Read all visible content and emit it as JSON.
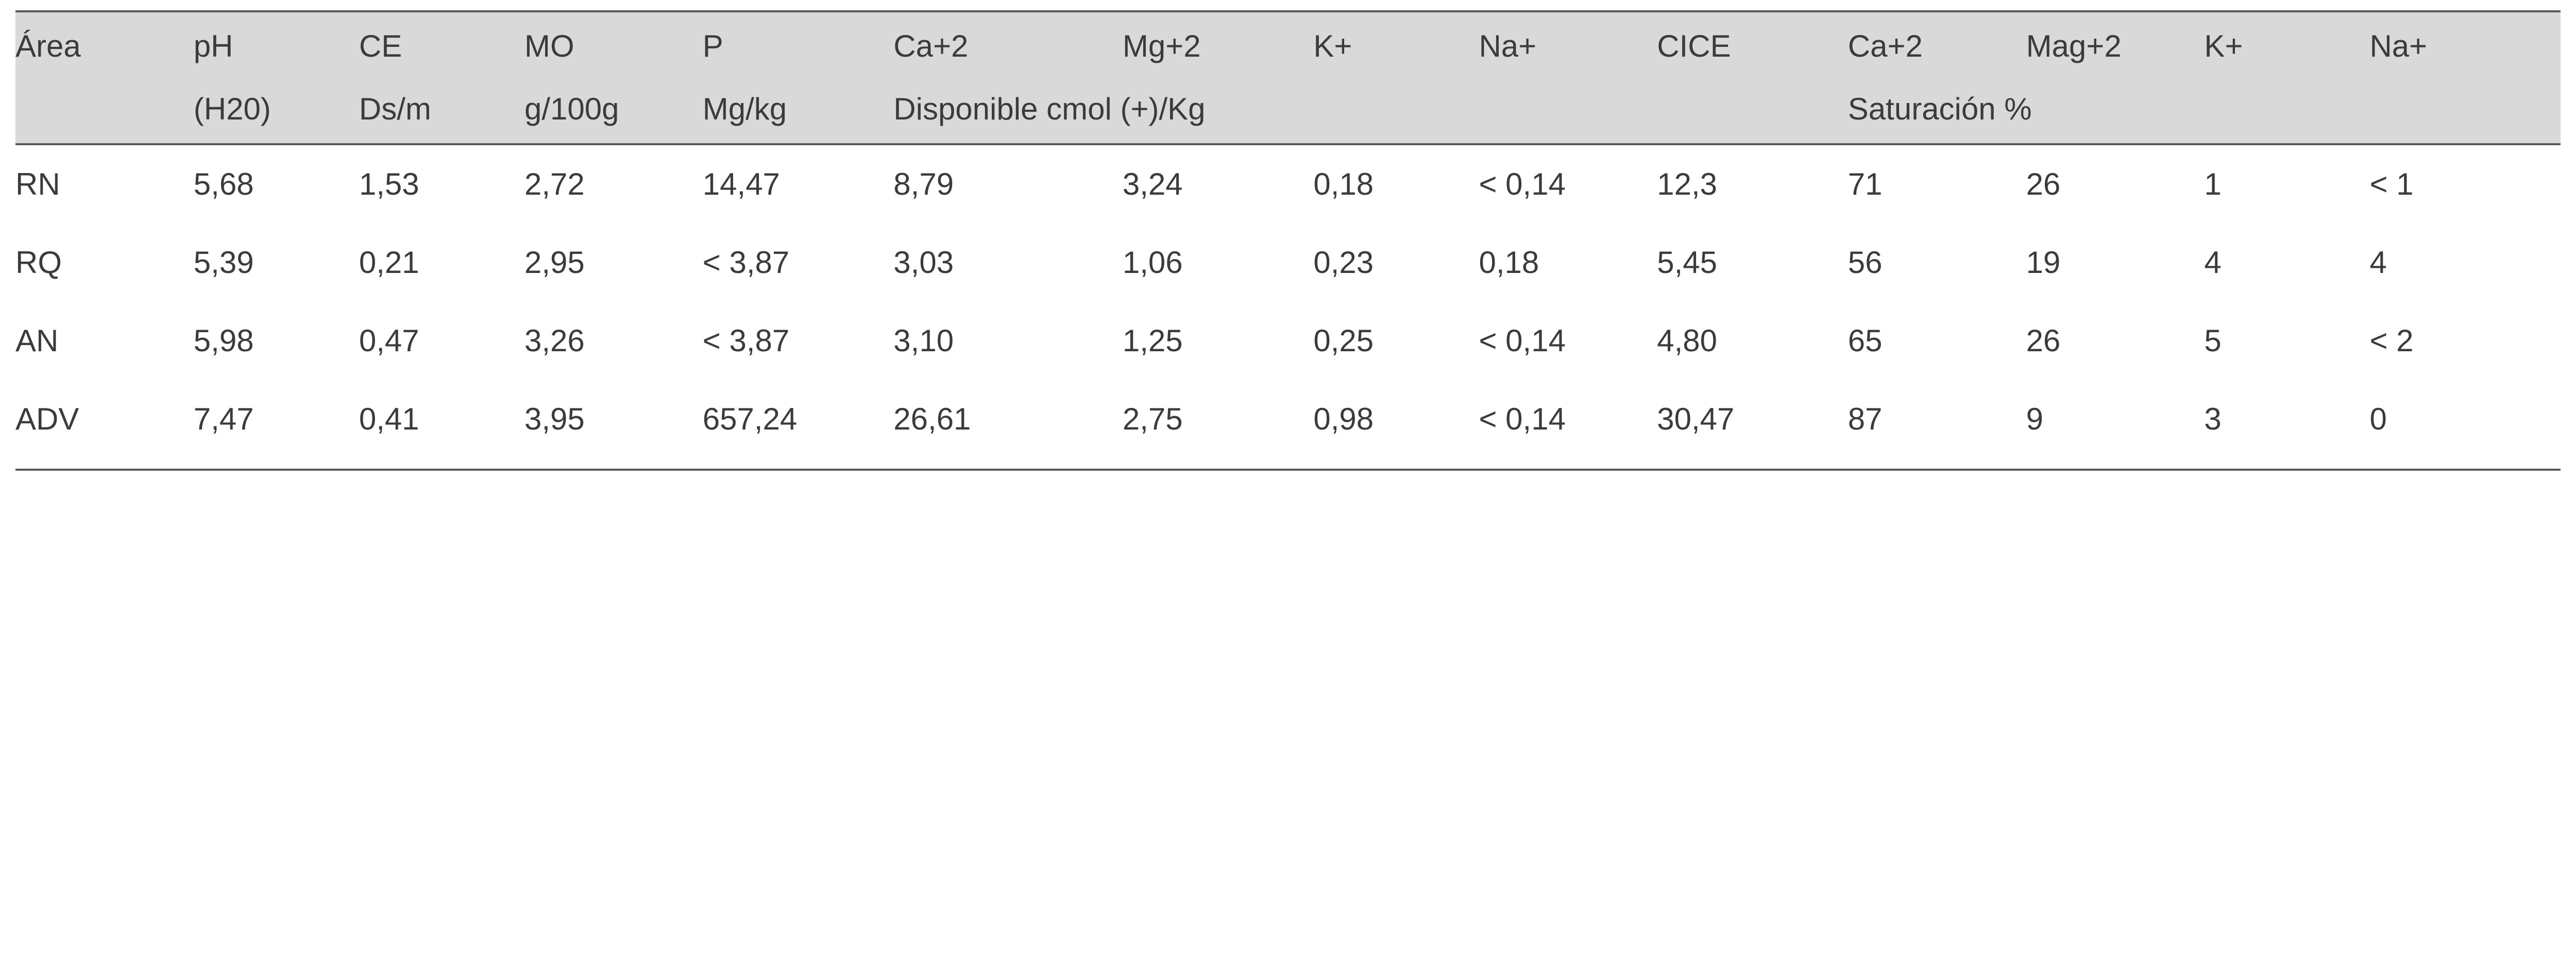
{
  "table": {
    "background_color": "#ffffff",
    "header_bg": "#d9d9d9",
    "text_color": "#3b3b3b",
    "rule_color": "#5a5a5a",
    "font_family": "Arial",
    "font_size_pt": 45,
    "columns": [
      {
        "key": "area",
        "h1": "Área",
        "h2": "",
        "width_pct": 7.0
      },
      {
        "key": "ph",
        "h1": "pH",
        "h2": "(H20)",
        "width_pct": 6.5
      },
      {
        "key": "ce",
        "h1": "CE",
        "h2": "Ds/m",
        "width_pct": 6.5
      },
      {
        "key": "mo",
        "h1": "MO",
        "h2": "g/100g",
        "width_pct": 7.0
      },
      {
        "key": "p",
        "h1": "P",
        "h2": "Mg/kg",
        "width_pct": 7.5
      },
      {
        "key": "ca1",
        "h1": "Ca+2",
        "h2": "Disponible cmol (+)/Kg",
        "width_pct": 9.0
      },
      {
        "key": "mg1",
        "h1": "Mg+2",
        "h2": "",
        "width_pct": 7.5
      },
      {
        "key": "k1",
        "h1": "K+",
        "h2": "",
        "width_pct": 6.5
      },
      {
        "key": "na1",
        "h1": "Na+",
        "h2": "",
        "width_pct": 7.0
      },
      {
        "key": "cice",
        "h1": "CICE",
        "h2": "",
        "width_pct": 7.5
      },
      {
        "key": "ca2",
        "h1": "Ca+2",
        "h2": "Saturación %",
        "width_pct": 7.0
      },
      {
        "key": "mg2",
        "h1": "Mag+2",
        "h2": "",
        "width_pct": 7.0
      },
      {
        "key": "k2",
        "h1": "K+",
        "h2": "",
        "width_pct": 6.5
      },
      {
        "key": "na2",
        "h1": "Na+",
        "h2": "",
        "width_pct": 7.5
      }
    ],
    "header_row2_spans": [
      {
        "start": 0,
        "span": 1,
        "text": ""
      },
      {
        "start": 1,
        "span": 1,
        "text": "(H20)"
      },
      {
        "start": 2,
        "span": 1,
        "text": "Ds/m"
      },
      {
        "start": 3,
        "span": 1,
        "text": "g/100g"
      },
      {
        "start": 4,
        "span": 1,
        "text": "Mg/kg"
      },
      {
        "start": 5,
        "span": 5,
        "text": "Disponible cmol (+)/Kg"
      },
      {
        "start": 10,
        "span": 4,
        "text": "Saturación %"
      }
    ],
    "rows": [
      {
        "area": "RN",
        "ph": "5,68",
        "ce": "1,53",
        "mo": "2,72",
        "p": "14,47",
        "ca1": "8,79",
        "mg1": "3,24",
        "k1": "0,18",
        "na1": "< 0,14",
        "cice": "12,3",
        "ca2": "71",
        "mg2": "26",
        "k2": "1",
        "na2": "< 1"
      },
      {
        "area": "RQ",
        "ph": "5,39",
        "ce": "0,21",
        "mo": "2,95",
        "p": "< 3,87",
        "ca1": "3,03",
        "mg1": "1,06",
        "k1": "0,23",
        "na1": "0,18",
        "cice": "5,45",
        "ca2": "56",
        "mg2": "19",
        "k2": "4",
        "na2": "4"
      },
      {
        "area": "AN",
        "ph": "5,98",
        "ce": "0,47",
        "mo": "3,26",
        "p": "< 3,87",
        "ca1": "3,10",
        "mg1": "1,25",
        "k1": "0,25",
        "na1": "< 0,14",
        "cice": "4,80",
        "ca2": "65",
        "mg2": "26",
        "k2": "5",
        "na2": "< 2"
      },
      {
        "area": "ADV",
        "ph": "7,47",
        "ce": "0,41",
        "mo": "3,95",
        "p": "657,24",
        "ca1": "26,61",
        "mg1": "2,75",
        "k1": "0,98",
        "na1": "< 0,14",
        "cice": "30,47",
        "ca2": "87",
        "mg2": "9",
        "k2": "3",
        "na2": "0"
      }
    ]
  }
}
